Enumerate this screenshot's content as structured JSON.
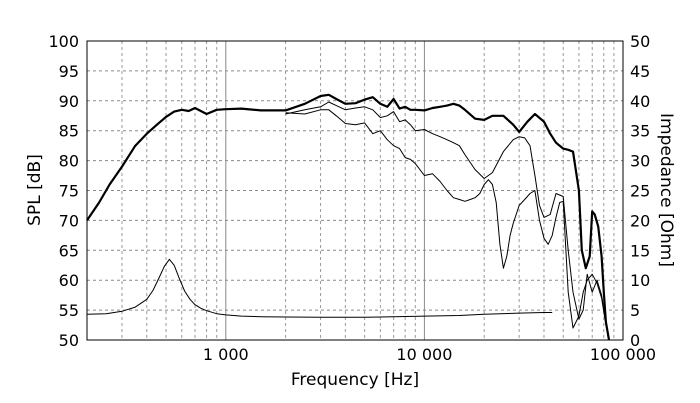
{
  "chart_data": {
    "type": "line",
    "title": "",
    "xlabel": "Frequency [Hz]",
    "ylabel_left": "SPL [dB]",
    "ylabel_right": "Impedance [Ohm]",
    "x_scale": "log",
    "xlim": [
      200,
      100000
    ],
    "ylim_left": [
      50,
      100
    ],
    "ylim_right": [
      0,
      50
    ],
    "grid": true,
    "x_ticks": [
      {
        "value": 1000,
        "label": "1 000"
      },
      {
        "value": 10000,
        "label": "10 000"
      },
      {
        "value": 100000,
        "label": "100 000"
      }
    ],
    "y_ticks_left": [
      "50",
      "55",
      "60",
      "65",
      "70",
      "75",
      "80",
      "85",
      "90",
      "95",
      "100"
    ],
    "y_ticks_right": [
      "0",
      "5",
      "10",
      "15",
      "20",
      "25",
      "30",
      "35",
      "40",
      "45",
      "50"
    ],
    "series": [
      {
        "axis": "left",
        "x": [
          200,
          230,
          260,
          300,
          350,
          400,
          450,
          500,
          550,
          600,
          650,
          700,
          800,
          900,
          1000,
          1200,
          1500,
          2000,
          2500,
          3000,
          3300,
          3600,
          4000,
          4500,
          5000,
          5500,
          6000,
          6500,
          7000,
          7500,
          8000,
          8500,
          9000,
          10000,
          11000,
          12000,
          13000,
          14000,
          15000,
          16000,
          18000,
          20000,
          22000,
          25000,
          28000,
          30000,
          33000,
          36000,
          40000,
          43000,
          46000,
          50000,
          53000,
          56000,
          60000,
          62000,
          65000,
          68000,
          70000,
          72000,
          75000,
          78000,
          80000,
          82000,
          85000
        ],
        "values": [
          70,
          73,
          76,
          79,
          82.5,
          84.5,
          86,
          87.3,
          88.2,
          88.5,
          88.3,
          88.8,
          87.8,
          88.5,
          88.6,
          88.7,
          88.4,
          88.4,
          89.5,
          90.8,
          91.0,
          90.3,
          89.5,
          89.6,
          90.2,
          90.6,
          89.5,
          89.0,
          90.3,
          88.7,
          89.0,
          88.5,
          88.5,
          88.4,
          88.8,
          89.0,
          89.2,
          89.5,
          89.2,
          88.5,
          87.0,
          86.8,
          87.5,
          87.5,
          86.0,
          84.8,
          86.5,
          87.8,
          86.5,
          84.5,
          83.0,
          82.0,
          81.8,
          81.5,
          75.0,
          65.0,
          62.0,
          64.0,
          71.5,
          71.0,
          69.0,
          64.0,
          58.0,
          53.0,
          50.0
        ]
      },
      {
        "axis": "left",
        "x": [
          2000,
          2500,
          3000,
          3300,
          3600,
          4000,
          4500,
          5000,
          5500,
          6000,
          6500,
          7000,
          7500,
          8000,
          8500,
          9000,
          10000,
          11000,
          12000,
          13000,
          14000,
          15000,
          16000,
          18000,
          20000,
          22000,
          25000,
          28000,
          30000,
          32000,
          34000,
          36000,
          38000,
          40000,
          43000,
          46000,
          50000,
          53000,
          56000,
          60000,
          63000,
          66000,
          70000,
          74000,
          78000,
          82000
        ],
        "values": [
          87.8,
          88.5,
          89.0,
          89.8,
          89.2,
          88.5,
          88.8,
          89.0,
          88.5,
          87.2,
          87.5,
          88.2,
          86.5,
          86.8,
          86.0,
          85.0,
          85.2,
          84.5,
          84.0,
          83.5,
          83.0,
          82.5,
          81.0,
          78.5,
          77.0,
          78.0,
          81.5,
          83.5,
          84.0,
          83.8,
          82.5,
          77.5,
          72.5,
          70.5,
          71.0,
          74.5,
          74.0,
          65.0,
          58.0,
          53.5,
          55.0,
          61.0,
          58.0,
          60.0,
          57.5,
          53.0
        ]
      },
      {
        "axis": "left",
        "x": [
          2000,
          2500,
          3000,
          3300,
          3600,
          4000,
          4500,
          5000,
          5500,
          6000,
          6500,
          7000,
          7500,
          8000,
          8500,
          9000,
          10000,
          11000,
          12000,
          13000,
          14000,
          15000,
          16000,
          17000,
          18000,
          19000,
          20000,
          21000,
          22000,
          23000,
          24000,
          25000,
          26000,
          27000,
          28000,
          29000,
          30000,
          32000,
          34000,
          36000,
          38000,
          40000,
          42000,
          44000,
          46000,
          48000,
          50000,
          53000,
          56000,
          60000,
          63000,
          66000,
          70000,
          74000,
          78000,
          82000
        ],
        "values": [
          88.0,
          87.8,
          88.5,
          88.5,
          87.5,
          86.2,
          86.0,
          86.3,
          84.5,
          85.0,
          83.5,
          82.5,
          82.0,
          80.5,
          80.2,
          79.5,
          77.5,
          77.8,
          76.5,
          75.0,
          73.8,
          73.5,
          73.2,
          73.5,
          73.8,
          74.5,
          76.0,
          76.8,
          76.0,
          73.0,
          66.0,
          62.0,
          64.0,
          67.5,
          69.5,
          71.0,
          72.5,
          73.5,
          74.5,
          75.0,
          70.0,
          67.0,
          66.0,
          67.5,
          70.5,
          73.0,
          73.2,
          58.0,
          52.0,
          54.0,
          58.0,
          60.0,
          61.0,
          59.5,
          57.0,
          52.5
        ]
      },
      {
        "axis": "right",
        "x": [
          200,
          250,
          300,
          350,
          400,
          430,
          460,
          490,
          520,
          550,
          580,
          620,
          660,
          700,
          750,
          800,
          900,
          1000,
          1200,
          1500,
          2000,
          3000,
          4000,
          5000,
          7000,
          10000,
          15000,
          20000,
          30000,
          40000,
          44000
        ],
        "values": [
          4.3,
          4.4,
          4.8,
          5.5,
          6.8,
          8.3,
          10.3,
          12.3,
          13.5,
          12.5,
          10.5,
          8.2,
          6.8,
          5.9,
          5.3,
          4.9,
          4.4,
          4.2,
          4.0,
          3.9,
          3.85,
          3.8,
          3.8,
          3.8,
          3.9,
          4.0,
          4.1,
          4.3,
          4.5,
          4.6,
          4.6
        ]
      }
    ]
  }
}
